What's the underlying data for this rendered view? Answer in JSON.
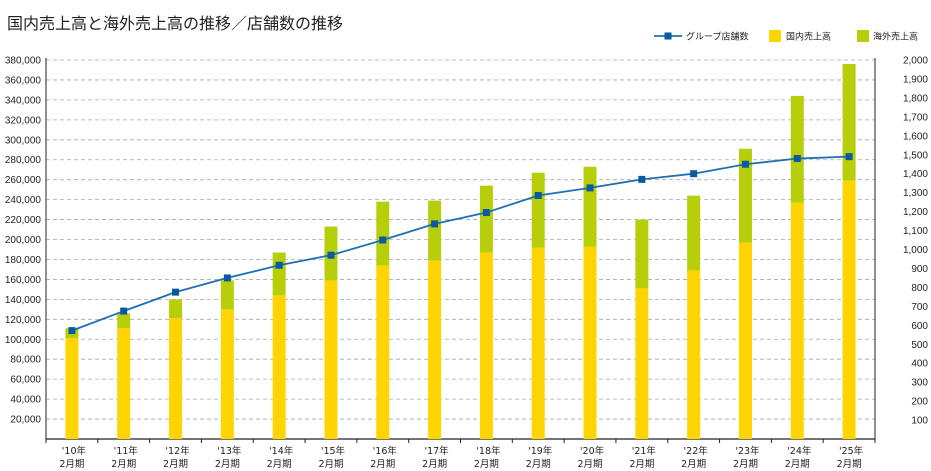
{
  "title": "国内売上高と海外売上高の推移／店舗数の推移",
  "chart_data": {
    "type": "bar",
    "stacked": true,
    "title": "国内売上高と海外売上高の推移／店舗数の推移",
    "categories": [
      [
        "'10年",
        "2月期"
      ],
      [
        "'11年",
        "2月期"
      ],
      [
        "'12年",
        "2月期"
      ],
      [
        "'13年",
        "2月期"
      ],
      [
        "'14年",
        "2月期"
      ],
      [
        "'15年",
        "2月期"
      ],
      [
        "'16年",
        "2月期"
      ],
      [
        "'17年",
        "2月期"
      ],
      [
        "'18年",
        "2月期"
      ],
      [
        "'19年",
        "2月期"
      ],
      [
        "'20年",
        "2月期"
      ],
      [
        "'21年",
        "2月期"
      ],
      [
        "'22年",
        "2月期"
      ],
      [
        "'23年",
        "2月期"
      ],
      [
        "'24年",
        "2月期"
      ],
      [
        "'25年",
        "2月期"
      ]
    ],
    "series": [
      {
        "name": "国内売上高",
        "type": "bar",
        "axis": "left",
        "color": "#ffd400",
        "values": [
          101000,
          111000,
          121000,
          130000,
          144000,
          159000,
          174000,
          179000,
          187000,
          192000,
          193000,
          151000,
          169000,
          197000,
          237000,
          259000
        ]
      },
      {
        "name": "海外売上高",
        "type": "bar",
        "axis": "left",
        "color": "#b7cf0a",
        "values": [
          10000,
          15000,
          19000,
          29000,
          43000,
          54000,
          64000,
          60000,
          67000,
          75000,
          80000,
          69000,
          75000,
          94000,
          107000,
          117000
        ]
      },
      {
        "name": "グループ店舗数",
        "type": "line",
        "axis": "right",
        "color": "#1f6fb5",
        "marker_color": "#0a5aa0",
        "values": [
          572,
          675,
          775,
          850,
          917,
          970,
          1050,
          1135,
          1195,
          1285,
          1325,
          1370,
          1400,
          1450,
          1480,
          1490
        ]
      }
    ],
    "y_left": {
      "min": 0,
      "max": 380000,
      "step": 20000,
      "tick_labels": [
        "20,000",
        "40,000",
        "60,000",
        "80,000",
        "100,000",
        "120,000",
        "140,000",
        "160,000",
        "180,000",
        "200,000",
        "220,000",
        "240,000",
        "260,000",
        "280,000",
        "300,000",
        "320,000",
        "340,000",
        "360,000",
        "380,000"
      ]
    },
    "y_right": {
      "min": 0,
      "max": 2000,
      "step": 100,
      "tick_labels": [
        "100",
        "200",
        "300",
        "400",
        "500",
        "600",
        "700",
        "800",
        "900",
        "1,000",
        "1,100",
        "1,200",
        "1,300",
        "1,400",
        "1,500",
        "1,600",
        "1,700",
        "1,800",
        "1,900",
        "2,000"
      ]
    },
    "grid": true,
    "grid_style": "dashed",
    "legend_position": "top-right",
    "legend": [
      "グループ店舗数",
      "国内売上高",
      "海外売上高"
    ]
  }
}
